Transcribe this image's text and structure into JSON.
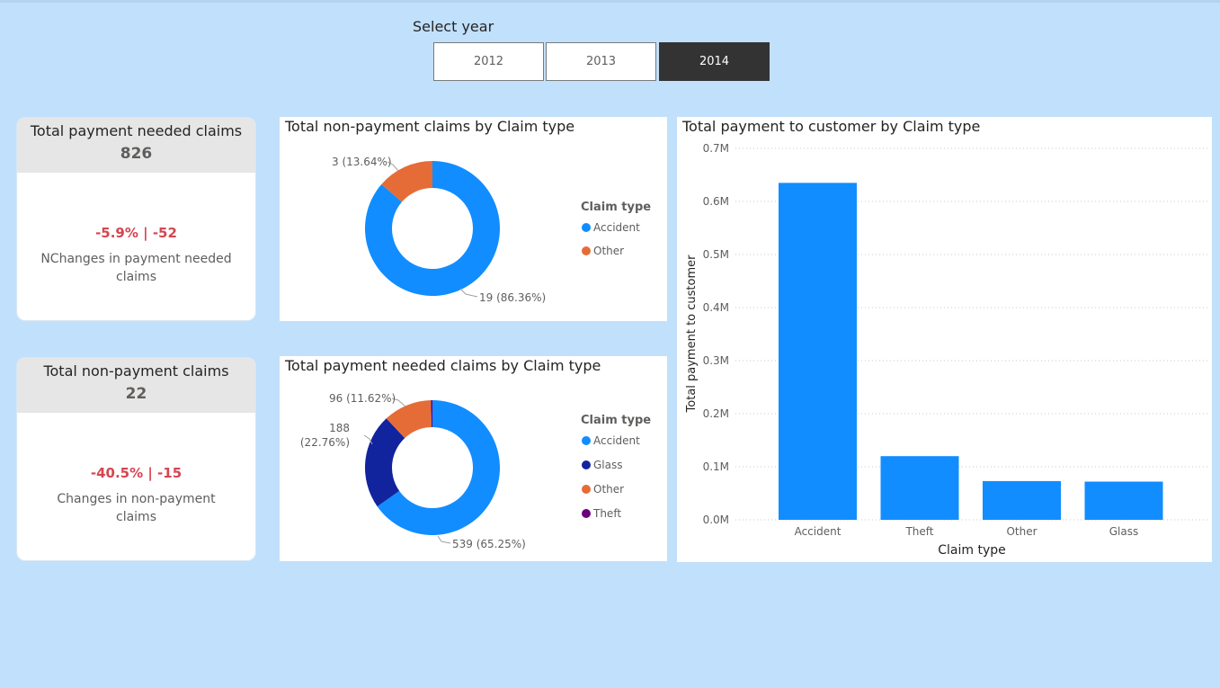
{
  "slicer": {
    "title": "Select year",
    "options": [
      "2012",
      "2013",
      "2014"
    ],
    "selected": "2014"
  },
  "kpi_payment": {
    "title": "Total payment needed claims",
    "value": "826",
    "delta": "-5.9% | -52",
    "description": "NChanges in payment needed claims"
  },
  "kpi_nonpayment": {
    "title": "Total non-payment claims",
    "value": "22",
    "delta": "-40.5% | -15",
    "description": "Changes in non-payment claims"
  },
  "colors": {
    "background": "#c1e0fb",
    "accident": "#118dff",
    "other": "#e66c37",
    "glass": "#12239e",
    "theft": "#6b007b",
    "negative": "#d64550"
  },
  "chart_data": [
    {
      "type": "pie",
      "variant": "donut",
      "title": "Total non-payment claims by Claim type",
      "legend_title": "Claim type",
      "legend_position": "right",
      "slices": [
        {
          "name": "Accident",
          "value": 19,
          "label": "19 (86.36%)"
        },
        {
          "name": "Other",
          "value": 3,
          "label": "3 (13.64%)"
        }
      ]
    },
    {
      "type": "pie",
      "variant": "donut",
      "title": "Total payment needed claims by Claim type",
      "legend_title": "Claim type",
      "legend_position": "right",
      "legend": [
        "Accident",
        "Glass",
        "Other",
        "Theft"
      ],
      "slices": [
        {
          "name": "Accident",
          "value": 539,
          "label": "539 (65.25%)"
        },
        {
          "name": "Glass",
          "value": 188,
          "label_lines": [
            "188",
            "(22.76%)"
          ]
        },
        {
          "name": "Other",
          "value": 96,
          "label": "96 (11.62%)"
        },
        {
          "name": "Theft",
          "value": 3
        }
      ]
    },
    {
      "type": "bar",
      "title": "Total payment to customer by Claim type",
      "xlabel": "Claim type",
      "ylabel": "Total payment to customer",
      "categories": [
        "Accident",
        "Theft",
        "Other",
        "Glass"
      ],
      "values": [
        635000,
        120000,
        73000,
        72000
      ],
      "ylim": [
        0,
        700000
      ],
      "yticks": [
        "0.0M",
        "0.1M",
        "0.2M",
        "0.3M",
        "0.4M",
        "0.5M",
        "0.6M",
        "0.7M"
      ],
      "grid": true
    }
  ]
}
